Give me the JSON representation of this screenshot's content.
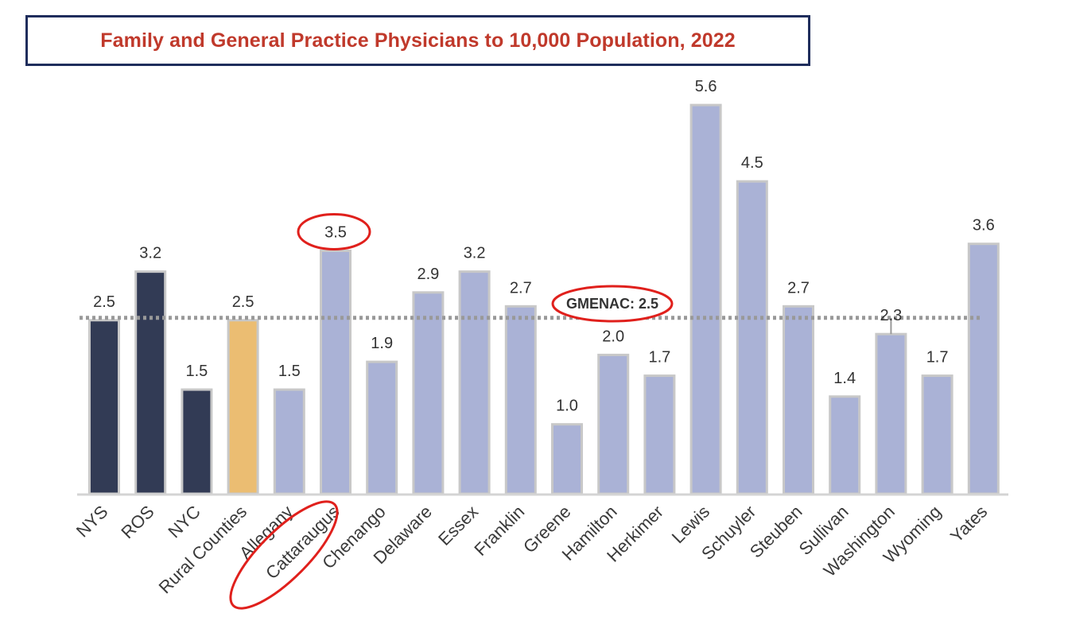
{
  "chart_data": {
    "type": "bar",
    "title": "Family and General Practice Physicians to 10,000 Population, 2022",
    "categories": [
      "NYS",
      "ROS",
      "NYC",
      "Rural Counties",
      "Allegany",
      "Cattaraugus",
      "Chenango",
      "Delaware",
      "Essex",
      "Franklin",
      "Greene",
      "Hamilton",
      "Herkimer",
      "Lewis",
      "Schuyler",
      "Steuben",
      "Sullivan",
      "Washington",
      "Wyoming",
      "Yates"
    ],
    "values": [
      2.5,
      3.2,
      1.5,
      2.5,
      1.5,
      3.5,
      1.9,
      2.9,
      3.2,
      2.7,
      1.0,
      2.0,
      1.7,
      5.6,
      4.5,
      2.7,
      1.4,
      2.3,
      1.7,
      3.6
    ],
    "value_labels": [
      "2.5",
      "3.2",
      "1.5",
      "2.5",
      "1.5",
      "3.5",
      "1.9",
      "2.9",
      "3.2",
      "2.7",
      "1.0",
      "2.0",
      "1.7",
      "5.6",
      "4.5",
      "2.7",
      "1.4",
      "2.3",
      "1.7",
      "3.6"
    ],
    "bar_colors": [
      "#323b55",
      "#323b55",
      "#323b55",
      "#ebbd72",
      "#aab2d6",
      "#aab2d6",
      "#aab2d6",
      "#aab2d6",
      "#aab2d6",
      "#aab2d6",
      "#aab2d6",
      "#aab2d6",
      "#aab2d6",
      "#aab2d6",
      "#aab2d6",
      "#aab2d6",
      "#aab2d6",
      "#aab2d6",
      "#aab2d6",
      "#aab2d6"
    ],
    "reference_line": {
      "value": 2.5,
      "label": "GMENAC: 2.5",
      "style": "dotted",
      "color": "#999999"
    },
    "highlight_color": "#e0201c",
    "highlighted_category": "Cattaraugus",
    "ylim": [
      0,
      6
    ],
    "xlabel": "",
    "ylabel": "",
    "grid": false,
    "legend": "none"
  }
}
